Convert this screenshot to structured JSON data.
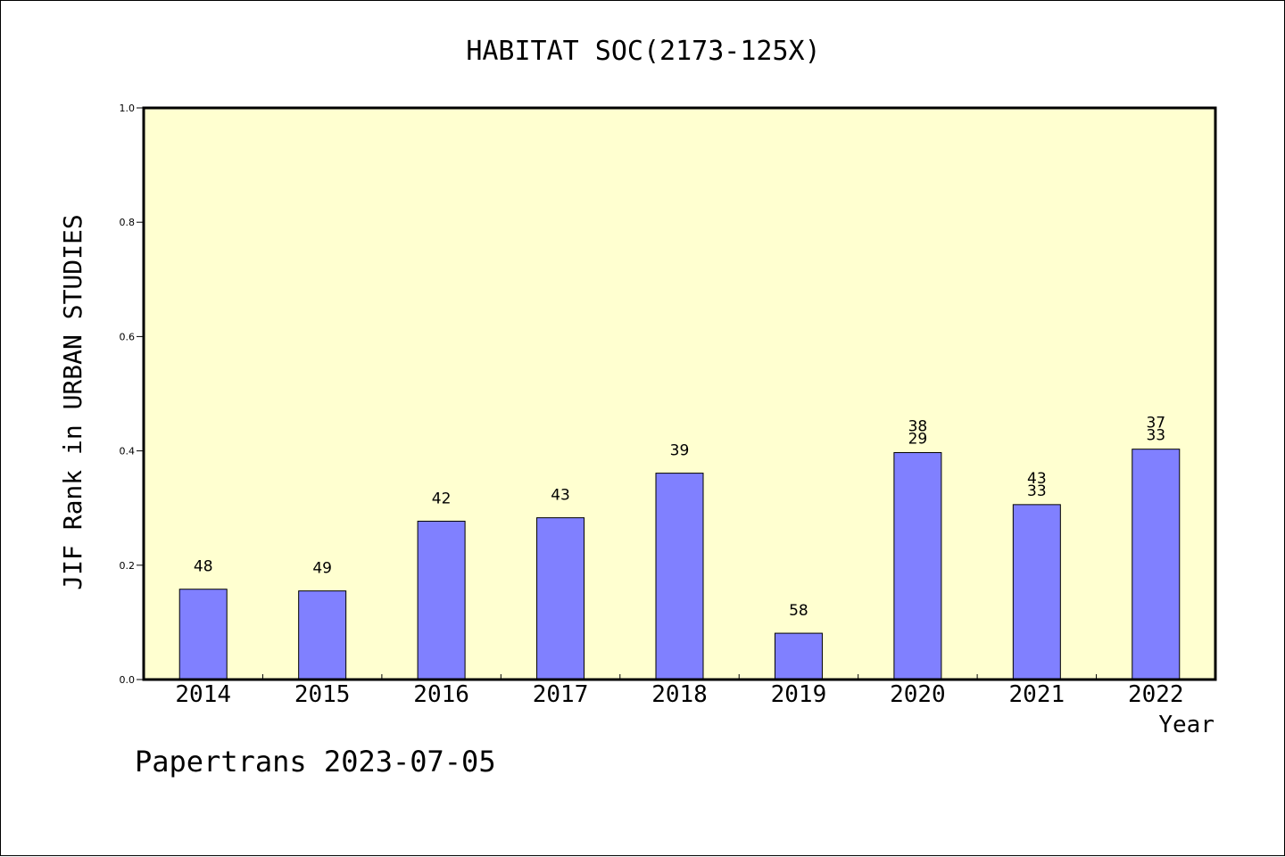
{
  "chart_data": {
    "type": "bar",
    "title": "HABITAT SOC(2173-125X)",
    "xlabel": "Year",
    "ylabel": "JIF Rank in URBAN STUDIES",
    "ylim": [
      0,
      1.0
    ],
    "yticks": [
      "0.0",
      "0.2",
      "0.4",
      "0.6",
      "0.8",
      "1.0"
    ],
    "ytick_values": [
      0,
      0.2,
      0.4,
      0.6,
      0.8,
      1.0
    ],
    "categories": [
      "2014",
      "2015",
      "2016",
      "2017",
      "2018",
      "2019",
      "2020",
      "2021",
      "2022"
    ],
    "values": [
      0.158,
      0.155,
      0.277,
      0.283,
      0.361,
      0.081,
      0.397,
      0.306,
      0.403
    ],
    "labels": [
      [
        "48"
      ],
      [
        "49"
      ],
      [
        "42"
      ],
      [
        "43"
      ],
      [
        "39"
      ],
      [
        "58"
      ],
      [
        "38",
        "29"
      ],
      [
        "43",
        "33"
      ],
      [
        "37",
        "33"
      ]
    ],
    "grid": false,
    "colors": {
      "plot_background": "#ffffd0",
      "bar_fill": "#8080ff",
      "bar_stroke": "#000000"
    }
  },
  "footer": {
    "credit": "Papertrans 2023-07-05"
  }
}
